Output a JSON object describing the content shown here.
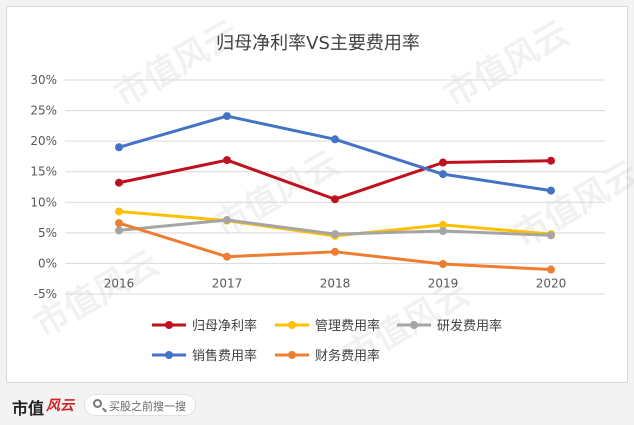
{
  "chart_data": {
    "type": "line",
    "title": "归母净利率VS主要费用率",
    "categories": [
      "2016",
      "2017",
      "2018",
      "2019",
      "2020"
    ],
    "yticks": [
      "30%",
      "25%",
      "20%",
      "15%",
      "10%",
      "5%",
      "0%",
      "-5%"
    ],
    "ylim": [
      -5,
      30
    ],
    "grid": true,
    "legend_position": "bottom",
    "series": [
      {
        "name": "归母净利率",
        "color": "#c0111f",
        "values": [
          13.2,
          16.9,
          10.5,
          16.5,
          16.8
        ]
      },
      {
        "name": "管理费用率",
        "color": "#ffc000",
        "values": [
          8.5,
          7.0,
          4.5,
          6.3,
          4.8
        ]
      },
      {
        "name": "研发费用率",
        "color": "#a5a5a5",
        "values": [
          5.4,
          7.1,
          4.8,
          5.3,
          4.6
        ]
      },
      {
        "name": "销售费用率",
        "color": "#4472c4",
        "values": [
          19.0,
          24.1,
          20.3,
          14.6,
          11.9
        ]
      },
      {
        "name": "财务费用率",
        "color": "#ed7d31",
        "values": [
          6.6,
          1.1,
          1.9,
          -0.1,
          -1.0
        ]
      }
    ]
  },
  "footer": {
    "brand": "市值",
    "brand_mark": "风云",
    "search_placeholder": "买股之前搜一搜"
  },
  "watermark_text": "市值风云"
}
